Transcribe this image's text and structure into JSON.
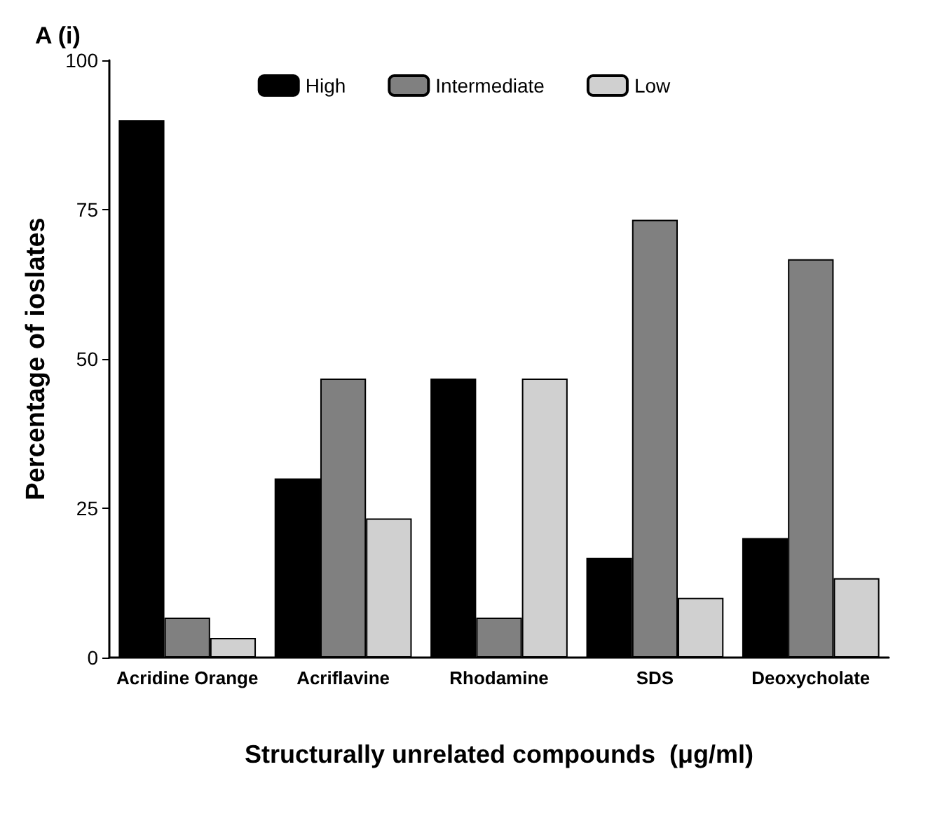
{
  "chart_data": {
    "type": "bar",
    "title": "A (i)",
    "xlabel": "Structurally unrelated compounds  (μg/ml)",
    "ylabel": "Percentage of ioslates",
    "categories": [
      "Acridine Orange",
      "Acriflavine",
      "Rhodamine",
      "SDS",
      "Deoxycholate"
    ],
    "series": [
      {
        "name": "High",
        "color": "#000000",
        "values": [
          90,
          30,
          46.7,
          16.7,
          20
        ]
      },
      {
        "name": "Intermediate",
        "color": "#808080",
        "values": [
          6.7,
          46.7,
          6.7,
          73.3,
          66.7
        ]
      },
      {
        "name": "Low",
        "color": "#d0d0d0",
        "values": [
          3.3,
          23.3,
          46.7,
          10,
          13.3
        ]
      }
    ],
    "ylim": [
      0,
      100
    ],
    "yticks": [
      0,
      25,
      50,
      75,
      100
    ],
    "grid": false,
    "legend": "top"
  }
}
